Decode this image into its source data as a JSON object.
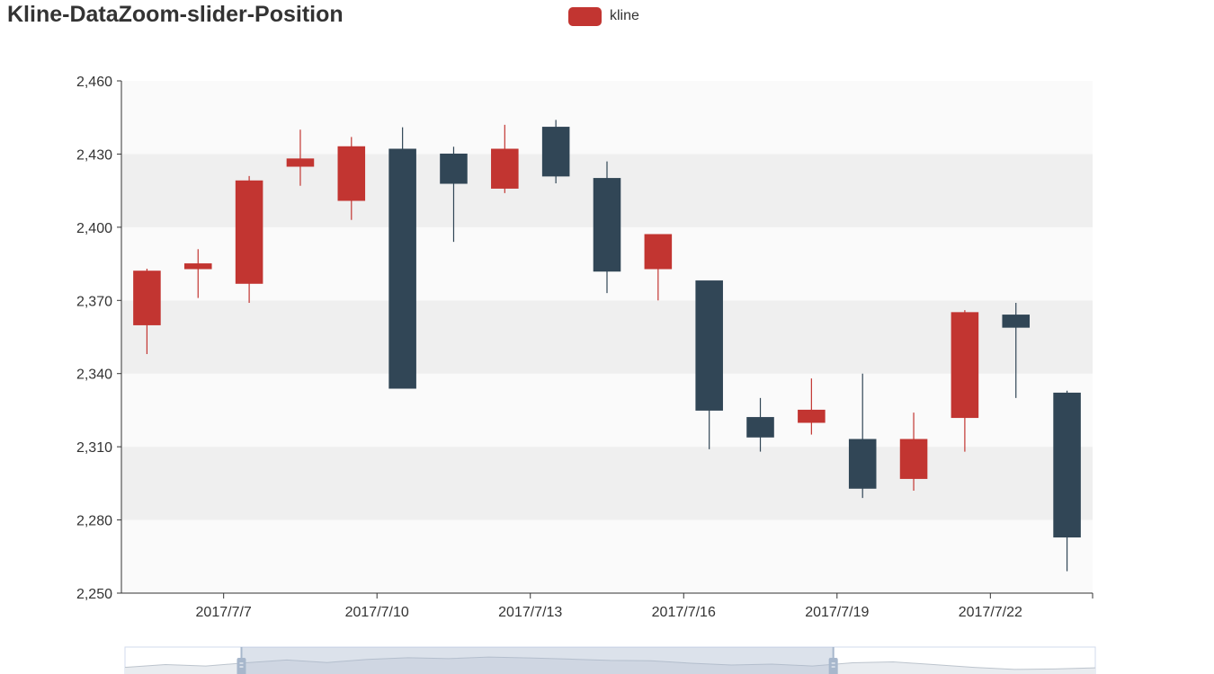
{
  "chart_data": {
    "type": "candlestick",
    "title": "Kline-DataZoom-slider-Position",
    "legend": {
      "label": "kline",
      "position": "top-center"
    },
    "x_tick_labels": [
      "2017/7/7",
      "2017/7/10",
      "2017/7/13",
      "2017/7/16",
      "2017/7/19",
      "2017/7/22"
    ],
    "ylim": [
      2250,
      2460
    ],
    "y_ticks": [
      2250,
      2280,
      2310,
      2340,
      2370,
      2400,
      2430,
      2460
    ],
    "y_tick_labels": [
      "2,250",
      "2,280",
      "2,310",
      "2,340",
      "2,370",
      "2,400",
      "2,430",
      "2,460"
    ],
    "split_area": true,
    "data_zoom": {
      "type": "slider",
      "position": "bottom",
      "start_percent": 12,
      "end_percent": 73
    },
    "series": [
      {
        "name": "kline",
        "up_color": "#c23531",
        "down_color": "#314656",
        "candles": [
          {
            "open": 2360,
            "close": 2382,
            "low": 2348,
            "high": 2383
          },
          {
            "open": 2383,
            "close": 2385,
            "low": 2371,
            "high": 2391
          },
          {
            "open": 2377,
            "close": 2419,
            "low": 2369,
            "high": 2421
          },
          {
            "open": 2425,
            "close": 2428,
            "low": 2417,
            "high": 2440
          },
          {
            "open": 2411,
            "close": 2433,
            "low": 2403,
            "high": 2437
          },
          {
            "open": 2432,
            "close": 2334,
            "low": 2334,
            "high": 2441
          },
          {
            "open": 2430,
            "close": 2418,
            "low": 2394,
            "high": 2433
          },
          {
            "open": 2416,
            "close": 2432,
            "low": 2414,
            "high": 2442
          },
          {
            "open": 2441,
            "close": 2421,
            "low": 2418,
            "high": 2444
          },
          {
            "open": 2420,
            "close": 2382,
            "low": 2373,
            "high": 2427
          },
          {
            "open": 2383,
            "close": 2397,
            "low": 2370,
            "high": 2397
          },
          {
            "open": 2378,
            "close": 2325,
            "low": 2309,
            "high": 2378
          },
          {
            "open": 2322,
            "close": 2314,
            "low": 2308,
            "high": 2330
          },
          {
            "open": 2320,
            "close": 2325,
            "low": 2315,
            "high": 2338
          },
          {
            "open": 2313,
            "close": 2293,
            "low": 2289,
            "high": 2340
          },
          {
            "open": 2297,
            "close": 2313,
            "low": 2292,
            "high": 2324
          },
          {
            "open": 2322,
            "close": 2365,
            "low": 2308,
            "high": 2366
          },
          {
            "open": 2364,
            "close": 2359,
            "low": 2330,
            "high": 2369
          },
          {
            "open": 2332,
            "close": 2273,
            "low": 2259,
            "high": 2333
          }
        ]
      }
    ],
    "slider_background_values": [
      2360,
      2372,
      2366,
      2380,
      2392,
      2381,
      2395,
      2402,
      2398,
      2405,
      2401,
      2396,
      2390,
      2389,
      2378,
      2370,
      2374,
      2366,
      2380,
      2384,
      2372,
      2360,
      2351,
      2353,
      2358
    ]
  }
}
